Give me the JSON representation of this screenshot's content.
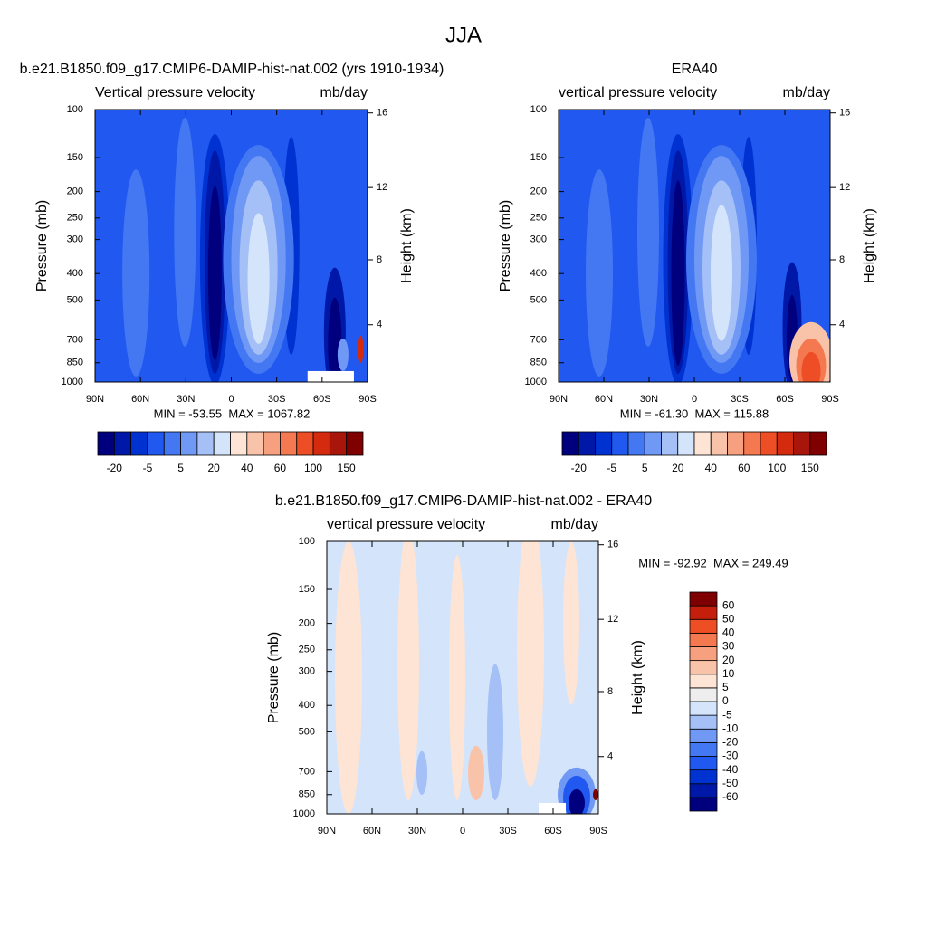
{
  "title": "JJA",
  "chart_data": [
    {
      "type": "contour",
      "title": "b.e21.B1850.f09_g17.CMIP6-DAMIP-hist-nat.002 (yrs 1910-1934)",
      "left_label": "Vertical pressure velocity",
      "right_label": "mb/day",
      "ylabel": "Pressure (mb)",
      "y2label": "Height (km)",
      "xlim": [
        90,
        -90
      ],
      "xticks": [
        {
          "value": 90,
          "label": "90N"
        },
        {
          "value": 60,
          "label": "60N"
        },
        {
          "value": 30,
          "label": "30N"
        },
        0,
        {
          "value": -30,
          "label": "30S"
        },
        {
          "value": -60,
          "label": "60S"
        },
        {
          "value": -90,
          "label": "90S"
        }
      ],
      "ylim": [
        1000,
        100
      ],
      "y_log": true,
      "yticks": [
        100,
        150,
        200,
        250,
        300,
        400,
        500,
        700,
        850,
        1000
      ],
      "y2ticks": [
        4,
        8,
        12,
        16
      ],
      "stats": "MIN = -53.55  MAX = 1067.82",
      "colorbar": {
        "orientation": "horizontal",
        "colors": [
          "#00007f",
          "#0018a8",
          "#0032d2",
          "#2158f0",
          "#4477f2",
          "#7098f5",
          "#a4c0f7",
          "#d4e4fb",
          "#fde4d4",
          "#f9c3aa",
          "#f6a07f",
          "#f47850",
          "#ee4e25",
          "#d42a0e",
          "#a8150a",
          "#7e0000"
        ],
        "levels": [
          -20,
          null,
          -5,
          null,
          5,
          null,
          20,
          null,
          40,
          null,
          60,
          null,
          100,
          null,
          150
        ]
      }
    },
    {
      "type": "contour",
      "title": "ERA40",
      "left_label": "vertical pressure velocity",
      "right_label": "mb/day",
      "ylabel": "Pressure (mb)",
      "y2label": "Height (km)",
      "xlim": [
        90,
        -90
      ],
      "xticks": [
        {
          "value": 90,
          "label": "90N"
        },
        {
          "value": 60,
          "label": "60N"
        },
        {
          "value": 30,
          "label": "30N"
        },
        0,
        {
          "value": -30,
          "label": "30S"
        },
        {
          "value": -60,
          "label": "60S"
        },
        {
          "value": -90,
          "label": "90S"
        }
      ],
      "ylim": [
        1000,
        100
      ],
      "y_log": true,
      "yticks": [
        100,
        150,
        200,
        250,
        300,
        400,
        500,
        700,
        850,
        1000
      ],
      "y2ticks": [
        4,
        8,
        12,
        16
      ],
      "stats": "MIN = -61.30  MAX = 115.88",
      "colorbar": {
        "orientation": "horizontal",
        "colors": [
          "#00007f",
          "#0018a8",
          "#0032d2",
          "#2158f0",
          "#4477f2",
          "#7098f5",
          "#a4c0f7",
          "#d4e4fb",
          "#fde4d4",
          "#f9c3aa",
          "#f6a07f",
          "#f47850",
          "#ee4e25",
          "#d42a0e",
          "#a8150a",
          "#7e0000"
        ],
        "levels": [
          -20,
          null,
          -5,
          null,
          5,
          null,
          20,
          null,
          40,
          null,
          60,
          null,
          100,
          null,
          150
        ]
      }
    },
    {
      "type": "contour",
      "title": "b.e21.B1850.f09_g17.CMIP6-DAMIP-hist-nat.002 - ERA40",
      "left_label": "vertical pressure velocity",
      "right_label": "mb/day",
      "ylabel": "Pressure (mb)",
      "y2label": "Height (km)",
      "xlim": [
        90,
        -90
      ],
      "xticks": [
        {
          "value": 90,
          "label": "90N"
        },
        {
          "value": 60,
          "label": "60N"
        },
        {
          "value": 30,
          "label": "30N"
        },
        0,
        {
          "value": -30,
          "label": "30S"
        },
        {
          "value": -60,
          "label": "60S"
        },
        {
          "value": -90,
          "label": "90S"
        }
      ],
      "ylim": [
        1000,
        100
      ],
      "y_log": true,
      "yticks": [
        100,
        150,
        200,
        250,
        300,
        400,
        500,
        700,
        850,
        1000
      ],
      "y2ticks": [
        4,
        8,
        12,
        16
      ],
      "stats": "MIN = -92.92  MAX = 249.49",
      "colorbar": {
        "orientation": "vertical",
        "colors": [
          "#00007f",
          "#0018a8",
          "#0032d2",
          "#2158f0",
          "#4477f2",
          "#7098f5",
          "#a4c0f7",
          "#d4e4fb",
          "#eeeeee",
          "#fde4d4",
          "#f9c3aa",
          "#f6a07f",
          "#f47850",
          "#ee4e25",
          "#c41f0c",
          "#7e0000"
        ],
        "levels": [
          -60,
          -50,
          -40,
          -30,
          -20,
          -10,
          -5,
          0,
          5,
          10,
          20,
          30,
          40,
          50,
          60
        ]
      }
    }
  ]
}
